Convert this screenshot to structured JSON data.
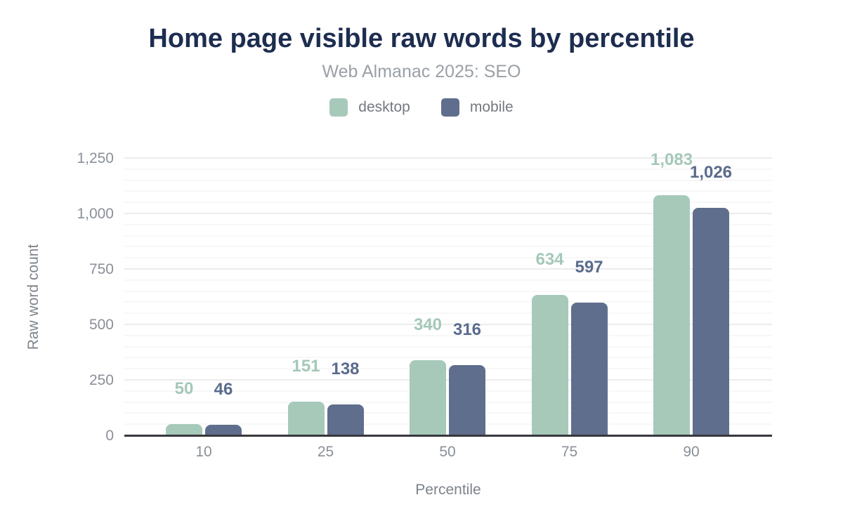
{
  "header": {
    "title": "Home page visible raw words by percentile",
    "subtitle": "Web Almanac 2025: SEO"
  },
  "chart_data": {
    "type": "bar",
    "title": "Home page visible raw words by percentile",
    "subtitle": "Web Almanac 2025: SEO",
    "categories": [
      "10",
      "25",
      "50",
      "75",
      "90"
    ],
    "series": [
      {
        "name": "desktop",
        "color": "#a6c9ba",
        "label_color": "#a4c8b8",
        "values": [
          50,
          151,
          340,
          634,
          1083
        ],
        "value_labels": [
          "50",
          "151",
          "340",
          "634",
          "1,083"
        ]
      },
      {
        "name": "mobile",
        "color": "#5f6e8c",
        "label_color": "#5a6b8d",
        "values": [
          46,
          138,
          316,
          597,
          1026
        ],
        "value_labels": [
          "46",
          "138",
          "316",
          "597",
          "1,026"
        ]
      }
    ],
    "xlabel": "Percentile",
    "ylabel": "Raw word count",
    "ylim": [
      0,
      1250
    ],
    "yticks": [
      0,
      250,
      500,
      750,
      1000,
      1250
    ],
    "ytick_labels": [
      "0",
      "250",
      "500",
      "750",
      "1,000",
      "1,250"
    ],
    "minor_grid_step": 50,
    "major_grid_step": 250,
    "grid": true,
    "legend_position": "top",
    "colors": {
      "title": "#1d2d50",
      "subtitle": "#9aa0a6",
      "tick_label": "#8a9097",
      "axis_line": "#38383d",
      "major_grid": "#ececec",
      "minor_grid": "#f7f7f7"
    }
  }
}
